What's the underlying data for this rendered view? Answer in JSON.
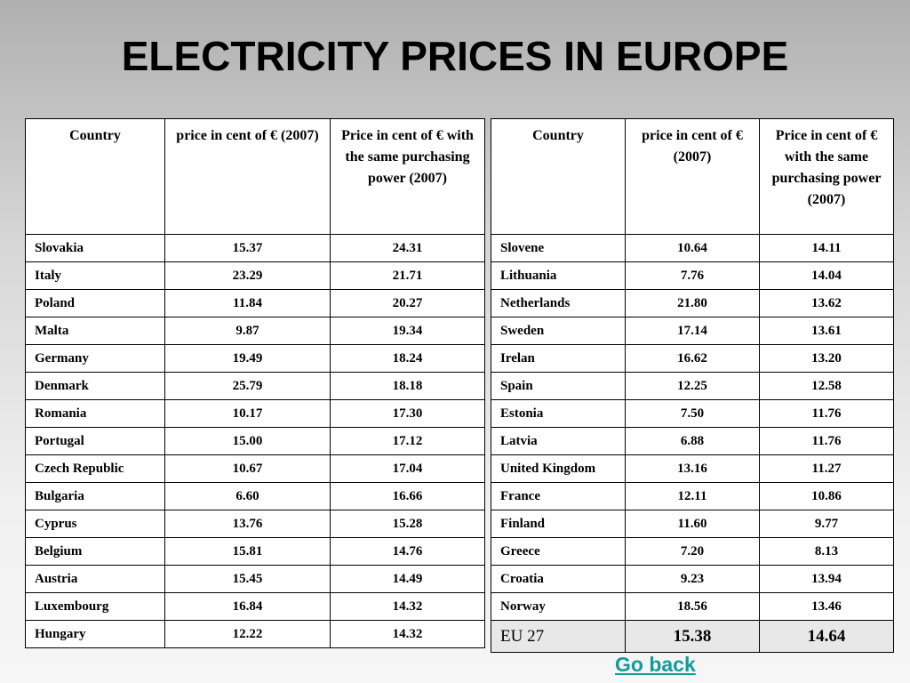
{
  "title": "ELECTRICITY PRICES IN EUROPE",
  "headers": {
    "left": [
      "Country",
      "price in cent of € (2007)",
      "Price in cent of € with the same purchasing power (2007)"
    ],
    "right": [
      "Country",
      "price in cent of € (2007)",
      "Price in cent of € with the same purchasing power (2007)"
    ]
  },
  "left_rows": [
    [
      "Slovakia",
      "15.37",
      "24.31"
    ],
    [
      "Italy",
      "23.29",
      "21.71"
    ],
    [
      "Poland",
      "11.84",
      "20.27"
    ],
    [
      "Malta",
      "9.87",
      "19.34"
    ],
    [
      "Germany",
      "19.49",
      "18.24"
    ],
    [
      "Denmark",
      "25.79",
      "18.18"
    ],
    [
      "Romania",
      "10.17",
      "17.30"
    ],
    [
      "Portugal",
      "15.00",
      "17.12"
    ],
    [
      "Czech Republic",
      "10.67",
      "17.04"
    ],
    [
      "Bulgaria",
      "6.60",
      "16.66"
    ],
    [
      "Cyprus",
      "13.76",
      "15.28"
    ],
    [
      "Belgium",
      "15.81",
      "14.76"
    ],
    [
      "Austria",
      "15.45",
      "14.49"
    ],
    [
      "Luxembourg",
      "16.84",
      "14.32"
    ],
    [
      "Hungary",
      "12.22",
      "14.32"
    ]
  ],
  "right_rows": [
    [
      "Slovene",
      "10.64",
      "14.11"
    ],
    [
      "Lithuania",
      "7.76",
      "14.04"
    ],
    [
      "Netherlands",
      "21.80",
      "13.62"
    ],
    [
      "Sweden",
      "17.14",
      "13.61"
    ],
    [
      "Irelan",
      "16.62",
      "13.20"
    ],
    [
      "Spain",
      "12.25",
      "12.58"
    ],
    [
      "Estonia",
      "7.50",
      "11.76"
    ],
    [
      "Latvia",
      "6.88",
      "11.76"
    ],
    [
      "United Kingdom",
      "13.16",
      "11.27"
    ],
    [
      "France",
      "12.11",
      "10.86"
    ],
    [
      "Finland",
      "11.60",
      "9.77"
    ],
    [
      "Greece",
      "7.20",
      "8.13"
    ],
    [
      "Croatia",
      "9.23",
      "13.94"
    ],
    [
      "Norway",
      "18.56",
      "13.46"
    ]
  ],
  "eu_row": [
    "EU 27",
    "15.38",
    "14.64"
  ],
  "go_back_label": "Go back",
  "colors": {
    "link": "#159a9a",
    "background_top": "#b0b0b0",
    "background_bottom": "#f6f6f6"
  }
}
